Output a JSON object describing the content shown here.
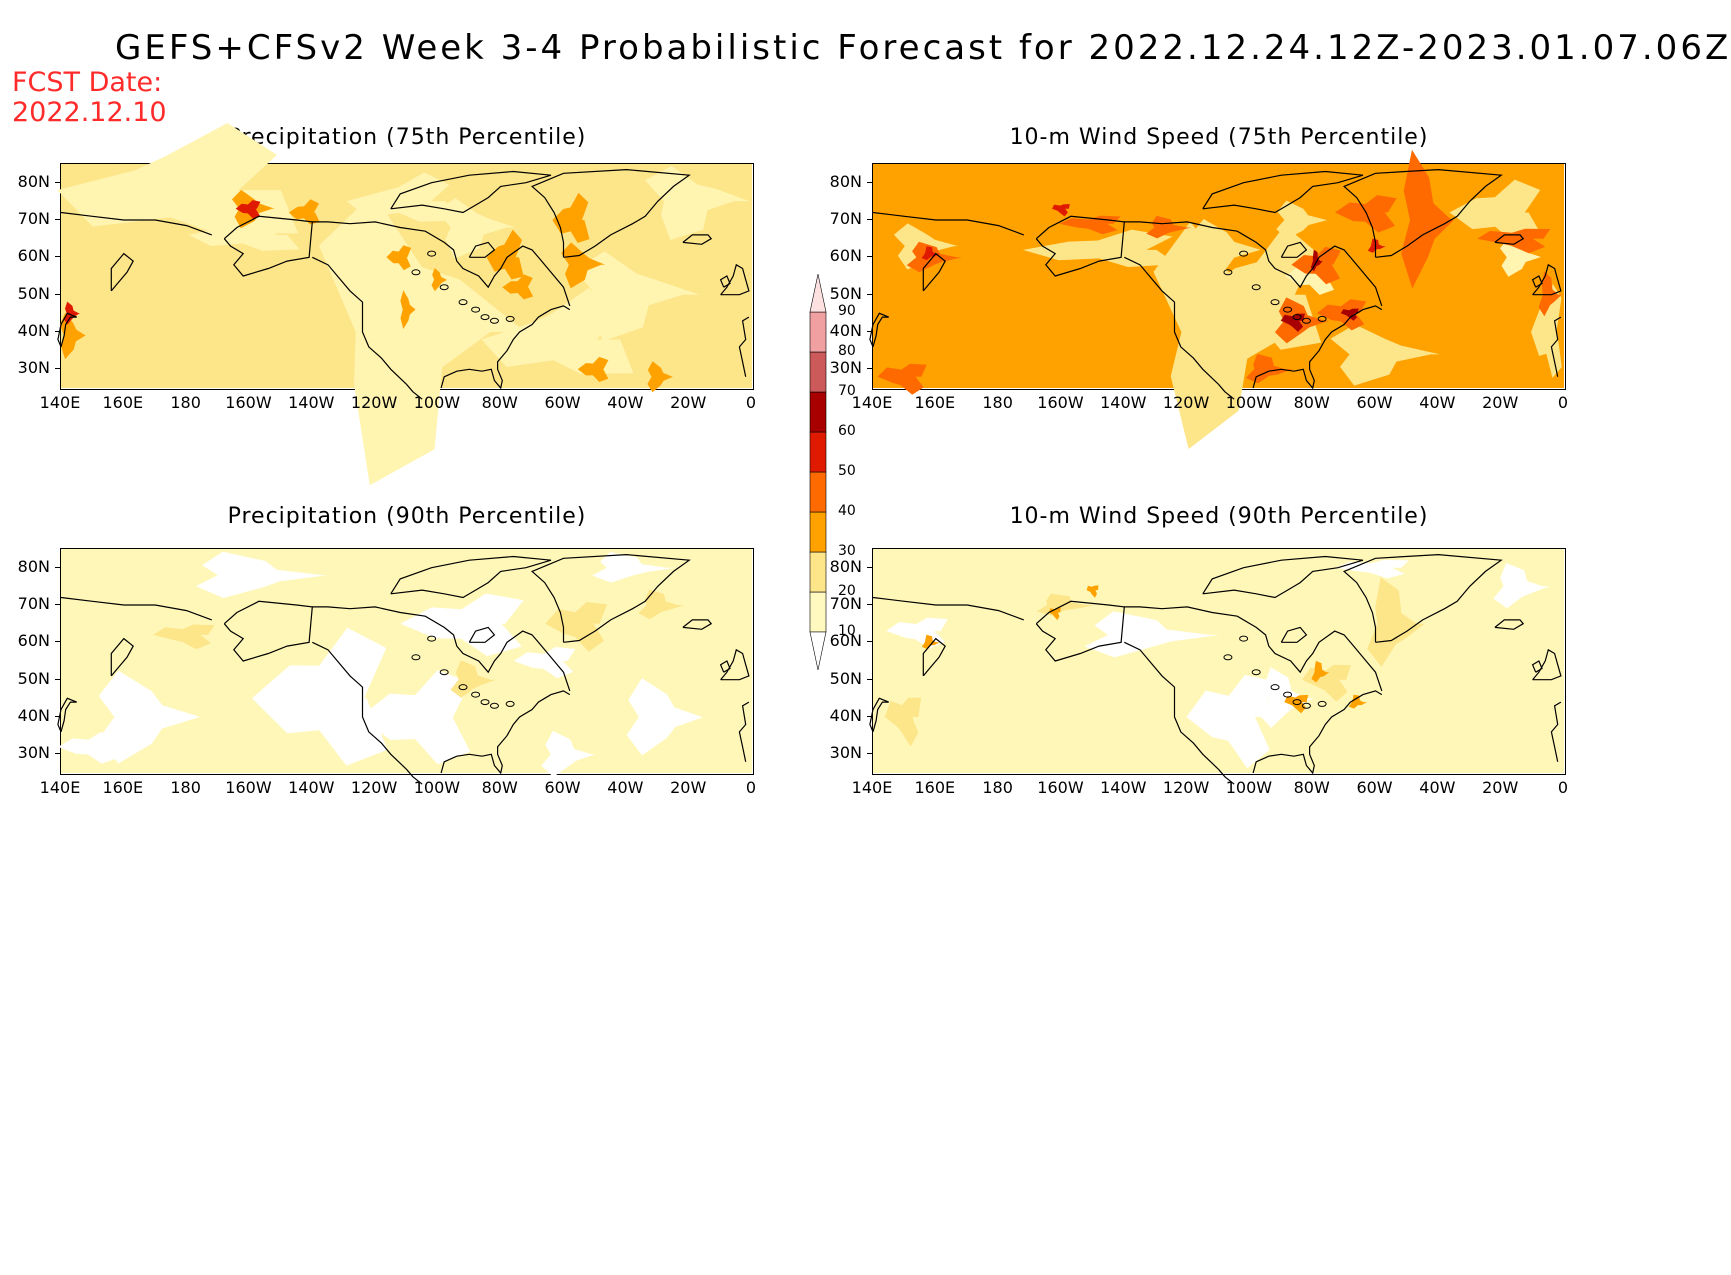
{
  "header": {
    "title": "GEFS+CFSv2 Week 3-4 Probabilistic Forecast for 2022.12.24.12Z-2023.01.07.06Z",
    "fcst_label": "FCST Date:",
    "fcst_date": "2022.12.10"
  },
  "axes": {
    "lat_labels": [
      "80N",
      "70N",
      "60N",
      "50N",
      "40N",
      "30N"
    ],
    "lon_labels": [
      "140E",
      "160E",
      "180",
      "160W",
      "140W",
      "120W",
      "100W",
      "80W",
      "60W",
      "40W",
      "20W",
      "0"
    ]
  },
  "panels": [
    {
      "id": "precip75",
      "title": "Precipitation (75th Percentile)",
      "base_color": "#fde58a",
      "accent_level": "medium"
    },
    {
      "id": "wind75",
      "title": "10-m Wind Speed (75th Percentile)",
      "base_color": "#ffa200",
      "accent_level": "high"
    },
    {
      "id": "precip90",
      "title": "Precipitation (90th Percentile)",
      "base_color": "#fff7b8",
      "accent_level": "low"
    },
    {
      "id": "wind90",
      "title": "10-m Wind Speed (90th Percentile)",
      "base_color": "#fdf0a8",
      "accent_level": "low"
    }
  ],
  "colorbar": {
    "levels": [
      "10",
      "20",
      "30",
      "40",
      "50",
      "60",
      "70",
      "80",
      "90"
    ],
    "colors": [
      "#fff9c0",
      "#fde58a",
      "#ffa200",
      "#ff6a00",
      "#e01a00",
      "#a80000",
      "#cd5a5a",
      "#f0a0a0",
      "#fde0e0"
    ]
  },
  "colors": {
    "title_color": "#000000",
    "fcst_color": "#ff2a2a",
    "coast_color": "#000000"
  }
}
